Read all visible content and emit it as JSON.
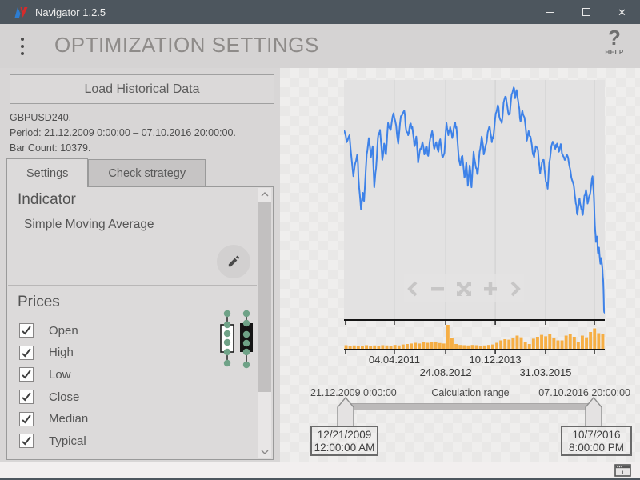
{
  "window": {
    "title": "Navigator 1.2.5",
    "controls": [
      "minimize",
      "maximize",
      "close"
    ]
  },
  "header": {
    "title": "OPTIMIZATION SETTINGS",
    "menu_icon": "kebab-menu",
    "help_glyph": "?",
    "help_label": "HELP"
  },
  "left_panel": {
    "load_button_label": "Load Historical Data",
    "info_lines": [
      "GBPUSD240.",
      "Period: 21.12.2009 0:00:00 – 07.10.2016 20:00:00.",
      "Bar Count: 10379."
    ],
    "tabs": [
      {
        "label": "Settings",
        "active": true
      },
      {
        "label": "Check strategy",
        "active": false
      }
    ],
    "indicator_heading": "Indicator",
    "indicator_value": "Simple Moving Average",
    "edit_icon": "pencil",
    "prices_heading": "Prices",
    "price_options": [
      {
        "label": "Open",
        "checked": true
      },
      {
        "label": "High",
        "checked": true
      },
      {
        "label": "Low",
        "checked": true
      },
      {
        "label": "Close",
        "checked": true
      },
      {
        "label": "Median",
        "checked": true
      },
      {
        "label": "Typical",
        "checked": true
      }
    ],
    "candle_legend": [
      "bullish-candle-icon",
      "bearish-candle-icon"
    ]
  },
  "chart_nav": {
    "buttons": [
      {
        "name": "pan-left",
        "glyph": "chevron-left"
      },
      {
        "name": "zoom-out",
        "glyph": "minus"
      },
      {
        "name": "reset-zoom",
        "glyph": "expand-arrows"
      },
      {
        "name": "zoom-in",
        "glyph": "plus"
      },
      {
        "name": "pan-right",
        "glyph": "chevron-right"
      }
    ]
  },
  "chart_data": {
    "type": "line",
    "symbol": "GBPUSD240",
    "title": "GBPUSD 4-hour price history with volume",
    "y_axis": "unlabeled",
    "x_tick_labels": [
      {
        "label": "04.04.2011",
        "pos": 0.193,
        "row": 1
      },
      {
        "label": "24.08.2012",
        "pos": 0.39,
        "row": 2
      },
      {
        "label": "10.12.2013",
        "pos": 0.58,
        "row": 1
      },
      {
        "label": "31.03.2015",
        "pos": 0.773,
        "row": 2
      }
    ],
    "gridline_positions": [
      0.193,
      0.39,
      0.58,
      0.773,
      0.96
    ],
    "axis_tick_positions": [
      0.006,
      0.193,
      0.39,
      0.58,
      0.773,
      0.96
    ],
    "line_color": "#3E82E8",
    "volume_color": "#F6AE44",
    "price_line_pct": [
      [
        0,
        20.8
      ],
      [
        1,
        25.9
      ],
      [
        2.1,
        23
      ],
      [
        3.6,
        40.1
      ],
      [
        4.4,
        34.4
      ],
      [
        5.1,
        31
      ],
      [
        5.8,
        44.7
      ],
      [
        6.5,
        53.8
      ],
      [
        7.2,
        47
      ],
      [
        7.7,
        50.4
      ],
      [
        8.7,
        31
      ],
      [
        9.5,
        24.2
      ],
      [
        10.3,
        32.2
      ],
      [
        11,
        27.6
      ],
      [
        11.6,
        44.7
      ],
      [
        12.3,
        36.7
      ],
      [
        13,
        24.2
      ],
      [
        13.8,
        20.8
      ],
      [
        14.7,
        33.3
      ],
      [
        15.4,
        26.5
      ],
      [
        16.1,
        31
      ],
      [
        16.9,
        17.9
      ],
      [
        17.9,
        20.8
      ],
      [
        19,
        13.9
      ],
      [
        20,
        19
      ],
      [
        20.8,
        26.5
      ],
      [
        21.8,
        15.1
      ],
      [
        23.1,
        12.8
      ],
      [
        23.9,
        21.3
      ],
      [
        24.6,
        23
      ],
      [
        25.3,
        18.5
      ],
      [
        26.2,
        19.6
      ],
      [
        27,
        27.6
      ],
      [
        27.7,
        23.6
      ],
      [
        28.4,
        34.4
      ],
      [
        29.2,
        28.7
      ],
      [
        30.1,
        25.9
      ],
      [
        30.8,
        31
      ],
      [
        31.5,
        27.6
      ],
      [
        32.3,
        31.6
      ],
      [
        33.1,
        24.2
      ],
      [
        33.8,
        21.3
      ],
      [
        34.6,
        28.7
      ],
      [
        35.4,
        25.9
      ],
      [
        36.2,
        29.9
      ],
      [
        36.9,
        24.7
      ],
      [
        37.6,
        31.6
      ],
      [
        38.5,
        30.4
      ],
      [
        39.3,
        17.9
      ],
      [
        40,
        23
      ],
      [
        40.7,
        19.6
      ],
      [
        41.5,
        24.2
      ],
      [
        42.4,
        17.9
      ],
      [
        43.1,
        19.6
      ],
      [
        43.9,
        31
      ],
      [
        44.6,
        35.6
      ],
      [
        45.4,
        31.6
      ],
      [
        46.2,
        40.7
      ],
      [
        46.9,
        34.4
      ],
      [
        47.5,
        44.1
      ],
      [
        48.2,
        35.6
      ],
      [
        48.9,
        44.7
      ],
      [
        49.7,
        29.9
      ],
      [
        50.6,
        36.7
      ],
      [
        51.3,
        39
      ],
      [
        52,
        29.9
      ],
      [
        52.8,
        23.6
      ],
      [
        53.6,
        31
      ],
      [
        54.4,
        27
      ],
      [
        55.1,
        21.9
      ],
      [
        55.9,
        19.6
      ],
      [
        56.7,
        25.9
      ],
      [
        57.4,
        22.5
      ],
      [
        58.2,
        13.9
      ],
      [
        59,
        10.5
      ],
      [
        59.8,
        16.2
      ],
      [
        60.5,
        17.9
      ],
      [
        61.2,
        9.4
      ],
      [
        62.1,
        7.1
      ],
      [
        62.9,
        13.3
      ],
      [
        63.6,
        13.9
      ],
      [
        64.3,
        5.9
      ],
      [
        65.1,
        3.1
      ],
      [
        65.6,
        7.6
      ],
      [
        66.2,
        4.2
      ],
      [
        67,
        10.5
      ],
      [
        67.7,
        17.3
      ],
      [
        68.4,
        12.8
      ],
      [
        69.2,
        15.6
      ],
      [
        70.1,
        25.3
      ],
      [
        70.8,
        21.3
      ],
      [
        71.5,
        23.6
      ],
      [
        72.3,
        29.9
      ],
      [
        72.9,
        32.2
      ],
      [
        73.5,
        27.6
      ],
      [
        74.4,
        29.3
      ],
      [
        75.2,
        39
      ],
      [
        75.9,
        34.4
      ],
      [
        76.6,
        33.3
      ],
      [
        77.4,
        42.4
      ],
      [
        78.1,
        45.3
      ],
      [
        78.7,
        34.4
      ],
      [
        79.5,
        27.6
      ],
      [
        80.3,
        25.9
      ],
      [
        81,
        28.7
      ],
      [
        81.7,
        26.5
      ],
      [
        82.4,
        29.9
      ],
      [
        83.1,
        26.7
      ],
      [
        83.8,
        31
      ],
      [
        84.6,
        33.3
      ],
      [
        85.4,
        31
      ],
      [
        86.2,
        34.4
      ],
      [
        86.9,
        38.4
      ],
      [
        87.7,
        42.4
      ],
      [
        88.3,
        45.8
      ],
      [
        88.9,
        51.5
      ],
      [
        89.5,
        56.1
      ],
      [
        90.3,
        49.3
      ],
      [
        91,
        53.8
      ],
      [
        91.6,
        56.1
      ],
      [
        92.2,
        48.1
      ],
      [
        92.8,
        45.8
      ],
      [
        93.4,
        51.5
      ],
      [
        94.1,
        48.1
      ],
      [
        94.7,
        44.7
      ],
      [
        95.3,
        40.1
      ],
      [
        95.8,
        48.1
      ],
      [
        96.2,
        60.7
      ],
      [
        96.6,
        67.5
      ],
      [
        97,
        65.2
      ],
      [
        97.4,
        72.1
      ],
      [
        97.8,
        69.8
      ],
      [
        98.3,
        76.6
      ],
      [
        98.7,
        74.3
      ],
      [
        99.1,
        78.9
      ],
      [
        99.4,
        83.5
      ],
      [
        99.7,
        96
      ],
      [
        100,
        97.2
      ]
    ],
    "volume_pct": [
      0.15,
      0.12,
      0.14,
      0.12,
      0.13,
      0.15,
      0.12,
      0.14,
      0.13,
      0.15,
      0.14,
      0.12,
      0.16,
      0.14,
      0.18,
      0.2,
      0.22,
      0.25,
      0.22,
      0.28,
      0.25,
      0.3,
      0.28,
      0.24,
      0.22,
      1.0,
      0.45,
      0.2,
      0.16,
      0.15,
      0.14,
      0.16,
      0.15,
      0.13,
      0.14,
      0.16,
      0.18,
      0.25,
      0.35,
      0.4,
      0.38,
      0.45,
      0.55,
      0.48,
      0.3,
      0.2,
      0.42,
      0.5,
      0.58,
      0.52,
      0.6,
      0.45,
      0.35,
      0.35,
      0.55,
      0.62,
      0.5,
      0.28,
      0.55,
      0.48,
      0.7,
      0.85,
      0.65,
      0.6
    ]
  },
  "range": {
    "start_label": "21.12.2009 0:00:00",
    "title": "Calculation range",
    "end_label": "07.10.2016 20:00:00",
    "start_value_lines": [
      "12/21/2009",
      "12:00:00 AM"
    ],
    "end_value_lines": [
      "10/7/2016",
      "8:00:00 PM"
    ]
  },
  "colors": {
    "titlebar_bg": "#4d565e",
    "header_title": "#8e8b89",
    "panel_bg": "#d8d6d6",
    "box_bg": "#dcdada",
    "plot_bg": "#e3e2e2",
    "gridline": "#d2d1d1",
    "accent_blue": "#3E82E8",
    "accent_orange": "#F6AE44",
    "candle_dot": "#6FA287",
    "axis": "#141414"
  }
}
